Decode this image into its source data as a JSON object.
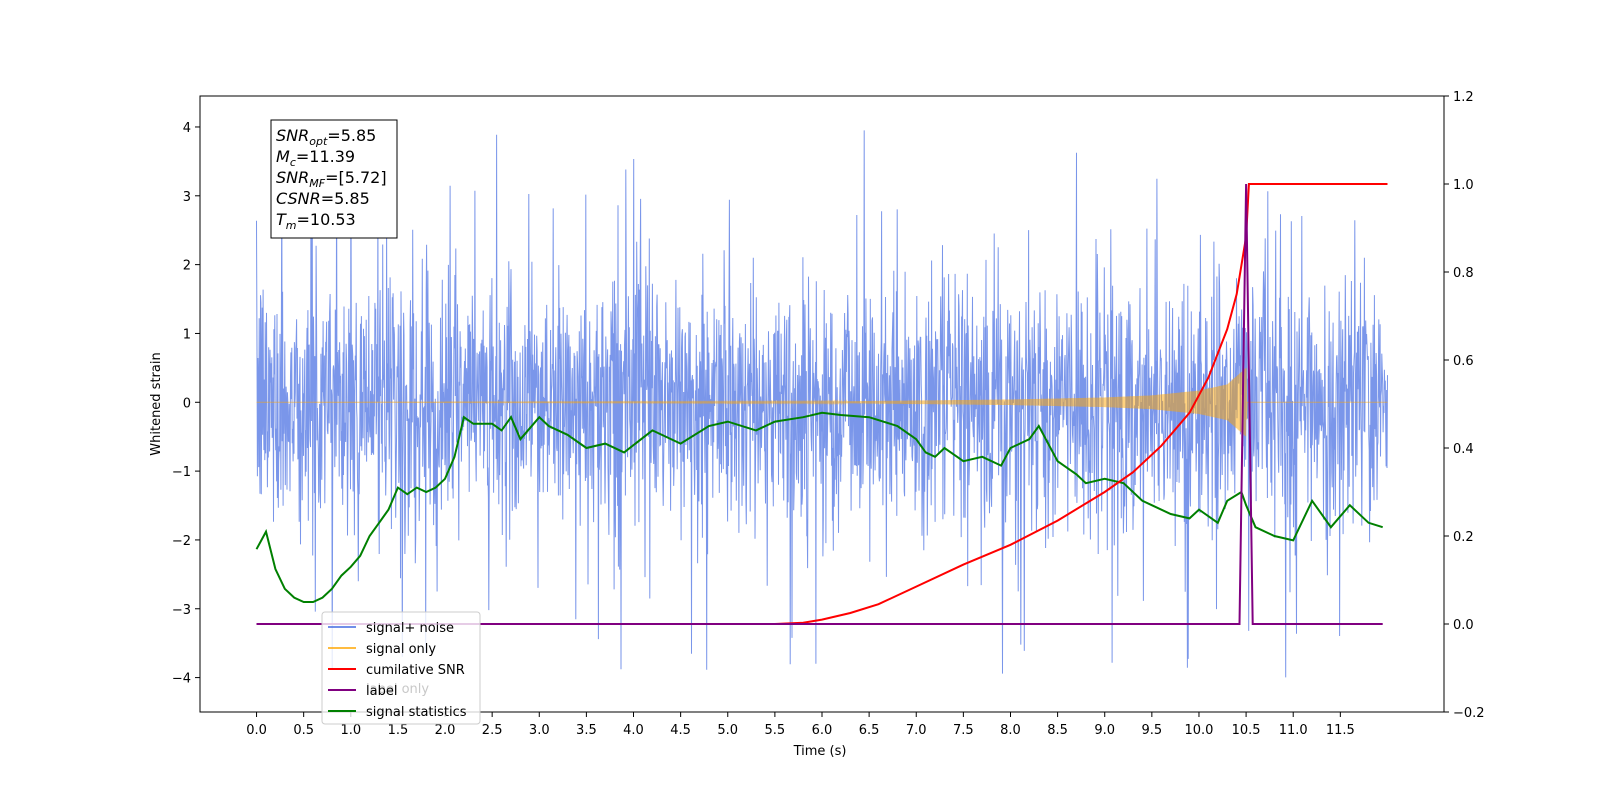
{
  "chart_data": {
    "type": "line",
    "xlabel": "Time (s)",
    "ylabel": "Whitened strain",
    "xlim": [
      -0.6,
      12.6
    ],
    "ylim_left": [
      -4.5,
      4.45
    ],
    "ylim_right": [
      -0.2,
      1.2
    ],
    "x_ticks": [
      "0.0",
      "0.5",
      "1.0",
      "1.5",
      "2.0",
      "2.5",
      "3.0",
      "3.5",
      "4.0",
      "4.5",
      "5.0",
      "5.5",
      "6.0",
      "6.5",
      "7.0",
      "7.5",
      "8.0",
      "8.5",
      "9.0",
      "9.5",
      "10.0",
      "10.5",
      "11.0",
      "11.5"
    ],
    "y_ticks_left": [
      "4",
      "3",
      "2",
      "1",
      "0",
      "−1",
      "−2",
      "−3",
      "−4"
    ],
    "y_ticks_right": [
      "1.2",
      "1.0",
      "0.8",
      "0.6",
      "0.4",
      "0.2",
      "0.0",
      "−0.2"
    ],
    "annotation": {
      "lines": [
        {
          "base": "SNR",
          "sub": "opt",
          "value": "=5.85"
        },
        {
          "base": "M",
          "sub": "c",
          "value": "=11.39"
        },
        {
          "base": "SNR",
          "sub": "MF",
          "value": "=[5.72]"
        },
        {
          "base": "CSNR",
          "sub": "",
          "value": "=5.85"
        },
        {
          "base": "T",
          "sub": "m",
          "value": "=10.53"
        }
      ]
    },
    "legend": [
      {
        "label": "signal+ noise",
        "color": "#4169e1"
      },
      {
        "label": "signal only",
        "color": "#ffa500"
      },
      {
        "label": "cumilative SNR",
        "color": "#ff0000"
      },
      {
        "label": "label",
        "color": "#800080"
      },
      {
        "label": "signal statistics",
        "color": "#008000"
      }
    ],
    "legend_placement": "lower-left",
    "hidden_label_text": "label only",
    "series": [
      {
        "name": "signal+ noise",
        "axis": "left",
        "color": "#4169e1",
        "kind": "noise",
        "x_range": [
          0.0,
          12.0
        ],
        "envelope_max": 4.05,
        "envelope_min": -4.1
      },
      {
        "name": "signal only",
        "axis": "left",
        "color": "#ffa500",
        "kind": "chirp",
        "x_range": [
          0.0,
          12.0
        ],
        "merger_time": 10.5,
        "envelope_x": [
          0.0,
          6.0,
          8.0,
          9.0,
          9.5,
          10.0,
          10.3,
          10.5,
          10.51,
          12.0
        ],
        "envelope_y": [
          0.0,
          0.01,
          0.04,
          0.07,
          0.1,
          0.17,
          0.26,
          0.5,
          0.0,
          0.0
        ]
      },
      {
        "name": "cumilative SNR",
        "axis": "right",
        "color": "#ff0000",
        "x": [
          0.0,
          5.5,
          5.8,
          6.0,
          6.3,
          6.6,
          7.0,
          7.5,
          8.0,
          8.5,
          9.0,
          9.3,
          9.6,
          9.9,
          10.1,
          10.3,
          10.4,
          10.5,
          10.53,
          12.0
        ],
        "y": [
          0.0,
          0.0,
          0.003,
          0.01,
          0.025,
          0.045,
          0.085,
          0.135,
          0.18,
          0.235,
          0.3,
          0.345,
          0.405,
          0.48,
          0.56,
          0.67,
          0.75,
          0.88,
          1.0,
          1.0
        ]
      },
      {
        "name": "label",
        "axis": "right",
        "color": "#800080",
        "x": [
          0.0,
          10.43,
          10.5,
          10.57,
          11.95
        ],
        "y": [
          0.0,
          0.0,
          1.0,
          0.0,
          0.0
        ]
      },
      {
        "name": "signal statistics",
        "axis": "right",
        "color": "#008000",
        "x": [
          0.0,
          0.05,
          0.1,
          0.2,
          0.3,
          0.4,
          0.5,
          0.6,
          0.7,
          0.8,
          0.9,
          1.0,
          1.1,
          1.2,
          1.3,
          1.4,
          1.5,
          1.6,
          1.7,
          1.8,
          1.9,
          2.0,
          2.1,
          2.2,
          2.3,
          2.5,
          2.6,
          2.7,
          2.8,
          3.0,
          3.1,
          3.3,
          3.5,
          3.7,
          3.9,
          4.2,
          4.5,
          4.8,
          5.0,
          5.3,
          5.5,
          5.8,
          6.0,
          6.2,
          6.5,
          6.8,
          7.0,
          7.1,
          7.2,
          7.3,
          7.5,
          7.7,
          7.9,
          8.0,
          8.2,
          8.3,
          8.5,
          8.7,
          8.8,
          9.0,
          9.2,
          9.4,
          9.5,
          9.7,
          9.9,
          10.0,
          10.2,
          10.3,
          10.45,
          10.5,
          10.6,
          10.8,
          11.0,
          11.2,
          11.4,
          11.6,
          11.8,
          11.95
        ],
        "y": [
          0.17,
          0.19,
          0.21,
          0.125,
          0.08,
          0.06,
          0.05,
          0.05,
          0.06,
          0.08,
          0.11,
          0.13,
          0.155,
          0.2,
          0.23,
          0.26,
          0.31,
          0.295,
          0.31,
          0.3,
          0.31,
          0.33,
          0.38,
          0.47,
          0.455,
          0.455,
          0.44,
          0.47,
          0.42,
          0.47,
          0.45,
          0.43,
          0.4,
          0.41,
          0.39,
          0.44,
          0.41,
          0.45,
          0.46,
          0.44,
          0.46,
          0.47,
          0.48,
          0.475,
          0.47,
          0.45,
          0.42,
          0.39,
          0.38,
          0.4,
          0.37,
          0.38,
          0.36,
          0.4,
          0.42,
          0.45,
          0.37,
          0.34,
          0.32,
          0.33,
          0.32,
          0.28,
          0.27,
          0.25,
          0.24,
          0.26,
          0.23,
          0.28,
          0.3,
          0.27,
          0.22,
          0.2,
          0.19,
          0.28,
          0.22,
          0.27,
          0.23,
          0.22
        ]
      }
    ]
  }
}
